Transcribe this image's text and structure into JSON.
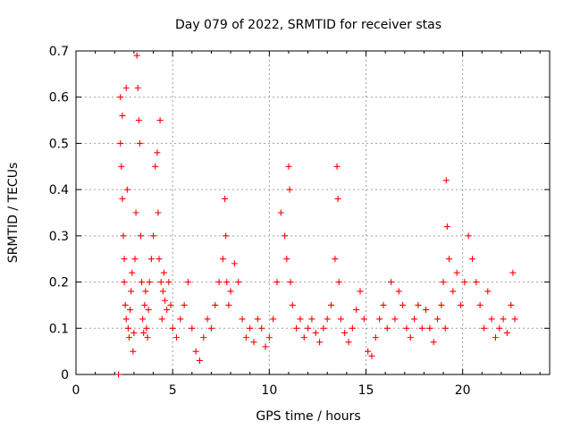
{
  "chart_data": {
    "type": "scatter",
    "title": "Day 079 of 2022, SRMTID for receiver stas",
    "xlabel": "GPS time / hours",
    "ylabel": "SRMTID / TECUs",
    "xlim": [
      0,
      24.5
    ],
    "ylim": [
      0,
      0.7
    ],
    "x_ticks": [
      0,
      5,
      10,
      15,
      20
    ],
    "y_ticks": [
      0,
      0.1,
      0.2,
      0.3,
      0.4,
      0.5,
      0.6,
      0.7
    ],
    "x_tick_labels": [
      "0",
      "5",
      "10",
      "15",
      "20"
    ],
    "y_tick_labels": [
      "0",
      "0.1",
      "0.2",
      "0.3",
      "0.4",
      "0.5",
      "0.6",
      "0.7"
    ],
    "grid": true,
    "marker": "plus",
    "color": "#ff0000",
    "series": [
      {
        "name": "SRMTID",
        "x": [
          2.2,
          2.3,
          2.3,
          2.35,
          2.4,
          2.4,
          2.45,
          2.5,
          2.5,
          2.55,
          2.6,
          2.6,
          2.65,
          2.7,
          2.75,
          2.8,
          2.85,
          2.9,
          2.95,
          3.0,
          3.05,
          3.1,
          3.15,
          3.2,
          3.25,
          3.3,
          3.35,
          3.4,
          3.45,
          3.5,
          3.55,
          3.6,
          3.65,
          3.7,
          3.75,
          3.8,
          3.9,
          4.0,
          4.1,
          4.2,
          4.25,
          4.3,
          4.35,
          4.4,
          4.45,
          4.5,
          4.55,
          4.6,
          4.7,
          4.8,
          4.9,
          5.0,
          5.2,
          5.4,
          5.6,
          5.8,
          6.0,
          6.2,
          6.4,
          6.6,
          6.8,
          7.0,
          7.2,
          7.4,
          7.6,
          7.7,
          7.75,
          7.8,
          7.9,
          8.0,
          8.2,
          8.4,
          8.6,
          8.8,
          9.0,
          9.2,
          9.4,
          9.6,
          9.8,
          10.0,
          10.2,
          10.4,
          10.6,
          10.8,
          10.9,
          11.0,
          11.05,
          11.1,
          11.2,
          11.4,
          11.6,
          11.8,
          12.0,
          12.2,
          12.4,
          12.6,
          12.8,
          13.0,
          13.2,
          13.4,
          13.5,
          13.55,
          13.6,
          13.7,
          13.9,
          14.1,
          14.3,
          14.5,
          14.7,
          14.9,
          15.1,
          15.3,
          15.5,
          15.7,
          15.9,
          16.1,
          16.3,
          16.5,
          16.7,
          16.9,
          17.1,
          17.3,
          17.5,
          17.7,
          17.9,
          18.1,
          18.3,
          18.5,
          18.7,
          18.9,
          19.0,
          19.1,
          19.15,
          19.2,
          19.3,
          19.5,
          19.7,
          19.9,
          20.1,
          20.3,
          20.5,
          20.7,
          20.9,
          21.1,
          21.3,
          21.5,
          21.7,
          21.9,
          22.1,
          22.3,
          22.5,
          22.6,
          22.7
        ],
        "y": [
          0.0,
          0.6,
          0.5,
          0.45,
          0.56,
          0.38,
          0.3,
          0.25,
          0.2,
          0.15,
          0.12,
          0.62,
          0.4,
          0.1,
          0.08,
          0.14,
          0.18,
          0.22,
          0.05,
          0.09,
          0.25,
          0.35,
          0.69,
          0.62,
          0.55,
          0.5,
          0.3,
          0.2,
          0.12,
          0.09,
          0.15,
          0.18,
          0.1,
          0.08,
          0.14,
          0.2,
          0.25,
          0.3,
          0.45,
          0.48,
          0.35,
          0.25,
          0.55,
          0.2,
          0.12,
          0.18,
          0.22,
          0.16,
          0.14,
          0.2,
          0.15,
          0.1,
          0.08,
          0.12,
          0.15,
          0.2,
          0.1,
          0.05,
          0.03,
          0.08,
          0.12,
          0.1,
          0.15,
          0.2,
          0.25,
          0.38,
          0.3,
          0.2,
          0.15,
          0.18,
          0.24,
          0.2,
          0.12,
          0.08,
          0.1,
          0.07,
          0.12,
          0.1,
          0.06,
          0.08,
          0.12,
          0.2,
          0.35,
          0.3,
          0.25,
          0.45,
          0.4,
          0.2,
          0.15,
          0.1,
          0.12,
          0.08,
          0.1,
          0.12,
          0.09,
          0.07,
          0.1,
          0.12,
          0.15,
          0.25,
          0.45,
          0.38,
          0.2,
          0.12,
          0.09,
          0.07,
          0.1,
          0.14,
          0.18,
          0.12,
          0.05,
          0.04,
          0.08,
          0.12,
          0.15,
          0.1,
          0.2,
          0.12,
          0.18,
          0.15,
          0.1,
          0.08,
          0.12,
          0.15,
          0.1,
          0.14,
          0.1,
          0.07,
          0.12,
          0.15,
          0.2,
          0.1,
          0.42,
          0.32,
          0.25,
          0.18,
          0.22,
          0.15,
          0.2,
          0.3,
          0.25,
          0.2,
          0.15,
          0.1,
          0.18,
          0.12,
          0.08,
          0.1,
          0.12,
          0.09,
          0.15,
          0.22,
          0.12
        ]
      }
    ]
  }
}
